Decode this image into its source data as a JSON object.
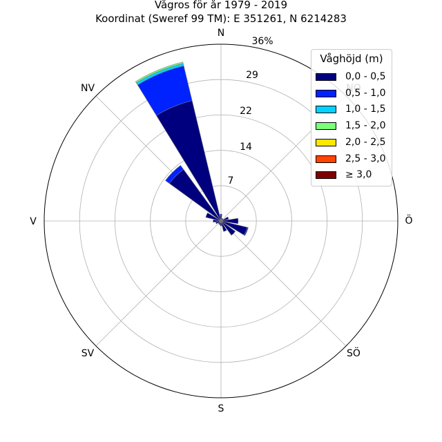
{
  "chart_data": {
    "type": "polar-bar",
    "title": "Vågros för år 1979 - 2019",
    "subtitle": "Koordinat (Sweref 99 TM): E 351261, N 6214283",
    "directions": [
      "N",
      "NV",
      "V",
      "SV",
      "S",
      "SÖ",
      "Ö",
      "NO"
    ],
    "radial_ticks": [
      "7",
      "14",
      "22",
      "29",
      "36%"
    ],
    "radial_max": 36,
    "grid": true,
    "legend_title": "Våghöjd (m)",
    "legend_position": "top-right",
    "bins": [
      {
        "label": "0,0 - 0,5",
        "color": "#00007f"
      },
      {
        "label": "0,5 - 1,0",
        "color": "#0022ff"
      },
      {
        "label": "1,0 - 1,5",
        "color": "#00d3ff"
      },
      {
        "label": "1,5 - 2,0",
        "color": "#7cff79"
      },
      {
        "label": "2,0 - 2,5",
        "color": "#ffe600"
      },
      {
        "label": "2,5 - 3,0",
        "color": "#ff4500"
      },
      {
        "label": "≥ 3,0",
        "color": "#7f0000"
      }
    ],
    "sectors": [
      {
        "direction_deg": 0,
        "values": [
          1.1,
          0.3,
          0,
          0,
          0,
          0,
          0
        ]
      },
      {
        "direction_deg": 22.5,
        "values": [
          0.6,
          0,
          0,
          0,
          0,
          0,
          0
        ]
      },
      {
        "direction_deg": 45,
        "values": [
          0.5,
          0,
          0,
          0,
          0,
          0,
          0
        ]
      },
      {
        "direction_deg": 67.5,
        "values": [
          1.6,
          0,
          0,
          0,
          0,
          0,
          0
        ]
      },
      {
        "direction_deg": 90,
        "values": [
          3.5,
          0,
          0,
          0,
          0,
          0,
          0
        ]
      },
      {
        "direction_deg": 112.5,
        "values": [
          5.5,
          0.2,
          0,
          0,
          0,
          0,
          0
        ]
      },
      {
        "direction_deg": 135,
        "values": [
          3.6,
          0,
          0,
          0,
          0,
          0,
          0
        ]
      },
      {
        "direction_deg": 157.5,
        "values": [
          2.2,
          0,
          0,
          0,
          0,
          0,
          0
        ]
      },
      {
        "direction_deg": 180,
        "values": [
          1.0,
          0,
          0,
          0,
          0,
          0,
          0
        ]
      },
      {
        "direction_deg": 202.5,
        "values": [
          0.8,
          0,
          0,
          0,
          0,
          0,
          0
        ]
      },
      {
        "direction_deg": 225,
        "values": [
          0.7,
          0,
          0,
          0,
          0,
          0,
          0
        ]
      },
      {
        "direction_deg": 247.5,
        "values": [
          1.1,
          0,
          0,
          0,
          0,
          0,
          0
        ]
      },
      {
        "direction_deg": 270,
        "values": [
          1.6,
          0,
          0,
          0,
          0,
          0,
          0
        ]
      },
      {
        "direction_deg": 292.5,
        "values": [
          3.2,
          0,
          0,
          0,
          0,
          0,
          0
        ]
      },
      {
        "direction_deg": 315,
        "values": [
          13.0,
          1.0,
          0,
          0,
          0,
          0,
          0
        ]
      },
      {
        "direction_deg": 337.5,
        "values": [
          25.2,
          7.3,
          0.5,
          0.3,
          0,
          0,
          0
        ]
      }
    ]
  }
}
